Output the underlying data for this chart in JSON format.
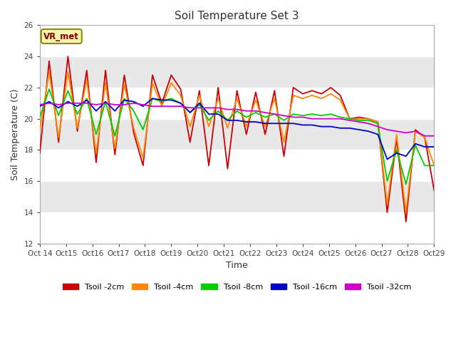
{
  "title": "Soil Temperature Set 3",
  "xlabel": "Time",
  "ylabel": "Soil Temperature (C)",
  "ylim": [
    12,
    26
  ],
  "yticks": [
    12,
    14,
    16,
    18,
    20,
    22,
    24,
    26
  ],
  "x_labels": [
    "Oct 14",
    "Oct 15",
    "Oct 16",
    "Oct 17",
    "Oct 18",
    "Oct 19",
    "Oct 20",
    "Oct 21",
    "Oct 22",
    "Oct 23",
    "Oct 24",
    "Oct 25",
    "Oct 26",
    "Oct 27",
    "Oct 28",
    "Oct 29"
  ],
  "annotation": "VR_met",
  "fig_bg": "#ffffff",
  "band_colors": [
    "#ffffff",
    "#e8e8e8"
  ],
  "series": {
    "Tsoil -2cm": {
      "color": "#cc0000",
      "lw": 1.3,
      "y": [
        17.8,
        23.7,
        18.5,
        24.0,
        19.2,
        23.1,
        17.2,
        23.1,
        17.7,
        22.8,
        19.1,
        17.0,
        22.8,
        21.0,
        22.8,
        21.9,
        18.5,
        21.8,
        17.0,
        22.0,
        16.8,
        21.8,
        19.0,
        21.7,
        19.0,
        21.8,
        17.6,
        22.0,
        21.6,
        21.8,
        21.6,
        22.0,
        21.5,
        20.0,
        20.1,
        20.0,
        19.8,
        14.0,
        18.7,
        13.4,
        19.3,
        18.8,
        15.4
      ]
    },
    "Tsoil -4cm": {
      "color": "#ff8800",
      "lw": 1.3,
      "y": [
        19.3,
        23.0,
        18.8,
        23.0,
        19.4,
        22.5,
        17.8,
        22.3,
        18.1,
        22.2,
        19.4,
        17.5,
        22.3,
        20.8,
        22.3,
        21.5,
        19.5,
        21.5,
        19.5,
        21.3,
        19.4,
        21.3,
        19.5,
        21.2,
        19.5,
        21.3,
        18.5,
        21.5,
        21.3,
        21.5,
        21.3,
        21.6,
        21.2,
        20.0,
        20.0,
        20.0,
        19.8,
        14.5,
        19.0,
        14.0,
        19.2,
        18.8,
        17.0
      ]
    },
    "Tsoil -8cm": {
      "color": "#00cc00",
      "lw": 1.3,
      "y": [
        20.1,
        21.9,
        20.2,
        21.8,
        20.3,
        21.3,
        19.0,
        21.1,
        18.9,
        21.3,
        20.5,
        19.3,
        21.3,
        21.1,
        21.3,
        21.0,
        20.4,
        20.9,
        19.9,
        20.5,
        19.9,
        20.5,
        20.1,
        20.4,
        20.1,
        20.3,
        19.9,
        20.3,
        20.2,
        20.3,
        20.2,
        20.3,
        20.1,
        20.0,
        19.9,
        19.9,
        19.7,
        16.0,
        18.0,
        15.8,
        18.3,
        17.0,
        17.0
      ]
    },
    "Tsoil -16cm": {
      "color": "#0000cc",
      "lw": 1.3,
      "y": [
        20.8,
        21.1,
        20.7,
        21.1,
        20.8,
        21.2,
        20.5,
        21.1,
        20.5,
        21.2,
        21.1,
        20.8,
        21.3,
        21.2,
        21.2,
        21.0,
        20.4,
        21.0,
        20.3,
        20.3,
        19.9,
        19.9,
        19.8,
        19.8,
        19.7,
        19.7,
        19.7,
        19.7,
        19.6,
        19.6,
        19.5,
        19.5,
        19.4,
        19.4,
        19.3,
        19.2,
        19.0,
        17.4,
        17.8,
        17.6,
        18.4,
        18.2,
        18.2
      ]
    },
    "Tsoil -32cm": {
      "color": "#cc00cc",
      "lw": 1.3,
      "y": [
        20.9,
        21.0,
        20.9,
        21.0,
        21.0,
        21.0,
        20.9,
        21.0,
        20.9,
        20.9,
        21.0,
        20.9,
        20.8,
        20.8,
        20.8,
        20.8,
        20.7,
        20.7,
        20.7,
        20.7,
        20.6,
        20.6,
        20.5,
        20.5,
        20.4,
        20.3,
        20.2,
        20.1,
        20.1,
        20.0,
        20.0,
        20.0,
        20.0,
        19.9,
        19.8,
        19.7,
        19.5,
        19.3,
        19.2,
        19.1,
        19.2,
        18.9,
        18.9
      ]
    }
  }
}
